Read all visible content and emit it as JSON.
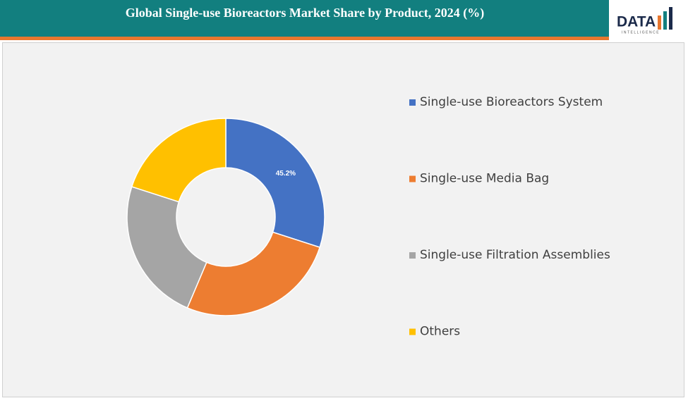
{
  "chart_data": {
    "type": "donut",
    "title": "Global Single-use Bioreactors Market Share by Product, 2024 (%)",
    "categories": [
      "Single-use Bioreactors System",
      "Single-use Media Bag",
      "Single-use Filtration Assemblies",
      "Others"
    ],
    "values": [
      45.2,
      39.8,
      35.6,
      30.2
    ],
    "value_labels": [
      "45.2%",
      null,
      null,
      null
    ],
    "colors": [
      "#4472c4",
      "#ed7d31",
      "#a5a5a5",
      "#ffc000"
    ],
    "legend": "right"
  },
  "logo": {
    "name": "DATA",
    "tagline": "INTELLIGENCE"
  }
}
